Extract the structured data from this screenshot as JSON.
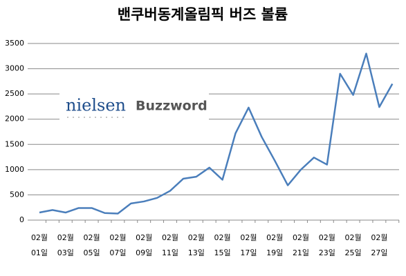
{
  "chart_data": {
    "type": "line",
    "title": "밴쿠버동계올림픽  버즈 볼륨",
    "logo": {
      "brand": "nielsen",
      "product": "Buzzword"
    },
    "categories": [
      "02월 01일",
      null,
      "02월 03일",
      null,
      "02월 05일",
      null,
      "02월 07일",
      null,
      "02월 09일",
      null,
      "02월 11일",
      null,
      "02월 13일",
      null,
      "02월 15일",
      null,
      "02월 17일",
      null,
      "02월 19일",
      null,
      "02월 21일",
      null,
      "02월 23일",
      null,
      "02월 25일",
      null,
      "02월 27일",
      null
    ],
    "series": [
      {
        "color": "#4a7ebb",
        "values": [
          150,
          200,
          150,
          240,
          240,
          140,
          130,
          330,
          370,
          440,
          580,
          820,
          860,
          1040,
          800,
          1720,
          2230,
          1650,
          1180,
          690,
          1000,
          1240,
          1100,
          2900,
          2480,
          3300,
          2240,
          2700
        ]
      }
    ],
    "ylim": [
      0,
      3500
    ],
    "yticks": [
      0,
      500,
      1000,
      1500,
      2000,
      2500,
      3000,
      3500
    ],
    "grid": true
  }
}
